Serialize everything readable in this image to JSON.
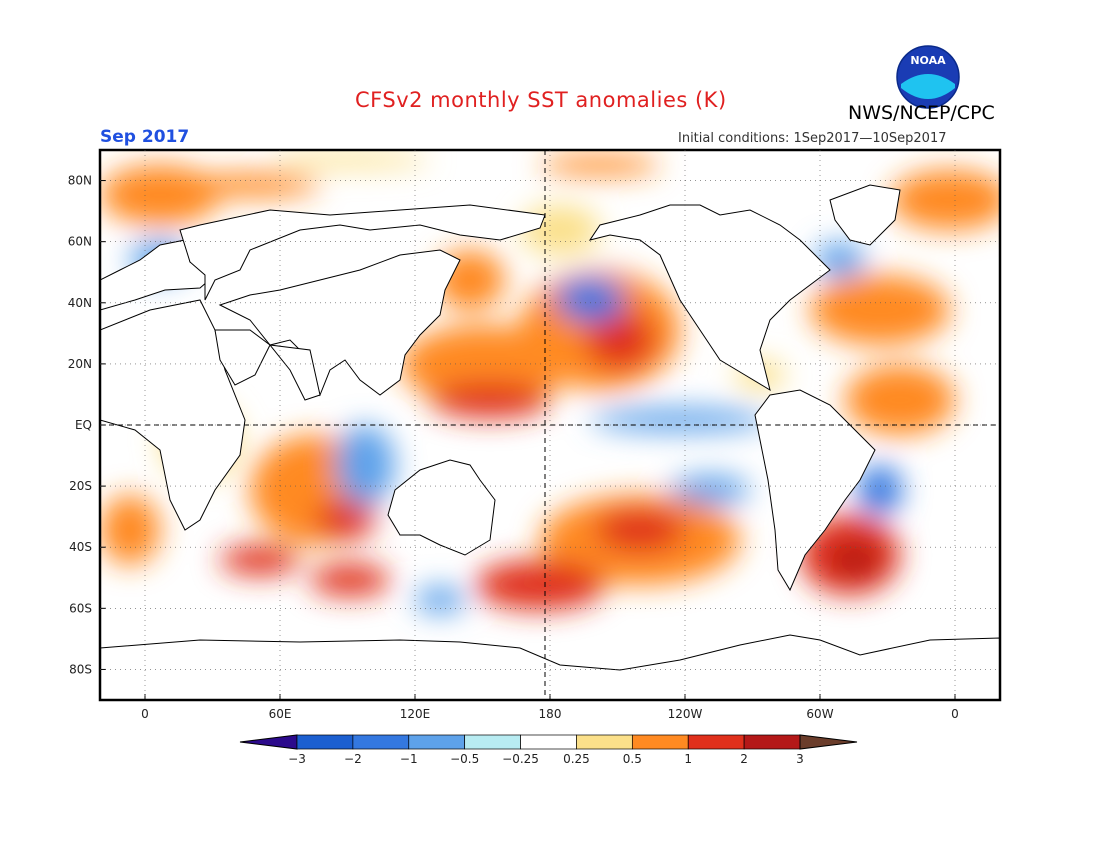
{
  "header": {
    "title": "CFSv2 monthly SST anomalies (K)",
    "organization": "NWS/NCEP/CPC",
    "logo_text": "NOAA",
    "month": "Sep 2017",
    "initial_conditions": "Initial conditions: 1Sep2017—10Sep2017"
  },
  "colors": {
    "title": "#e02020",
    "month": "#2050e0",
    "land": "#ffffff",
    "frame": "#000000"
  },
  "map": {
    "projection": "equirectangular",
    "lon_range": [
      -20,
      380
    ],
    "lat_range": [
      -90,
      90
    ],
    "lon_labels": [
      "0",
      "60E",
      "120E",
      "180",
      "120W",
      "60W",
      "0"
    ],
    "lat_labels": [
      "80N",
      "60N",
      "40N",
      "20N",
      "EQ",
      "20S",
      "40S",
      "60S",
      "80S"
    ],
    "dashed_reference": [
      "Equator",
      "180 meridian"
    ]
  },
  "colorbar": {
    "bounds": [
      "-3",
      "-2",
      "-1",
      "-0.5",
      "-0.25",
      "0.25",
      "0.5",
      "1",
      "2",
      "3"
    ],
    "colors": [
      "#2c0a8c",
      "#1c5fd0",
      "#3478e0",
      "#5ea2ea",
      "#b8ecf2",
      "#ffffff",
      "#fbe08a",
      "#ff8a22",
      "#e0301c",
      "#b41818",
      "#6b3d2b"
    ]
  },
  "anomaly_regions": [
    {
      "name": "NE Pacific warm blob",
      "lon": 205,
      "lat": 28,
      "level": 1
    },
    {
      "name": "Gulf of Alaska cool",
      "lon": 190,
      "lat": 42,
      "level": -2
    },
    {
      "name": "W Pacific warm",
      "lon": 150,
      "lat": 18,
      "level": 1
    },
    {
      "name": "Equatorial Pacific cool",
      "lon": 225,
      "lat": -2,
      "level": -1
    },
    {
      "name": "SE Pacific warm",
      "lon": 205,
      "lat": -38,
      "level": 1
    },
    {
      "name": "S Atlantic warm",
      "lon": 310,
      "lat": -42,
      "level": 2
    },
    {
      "name": "S Indian warm",
      "lon": 85,
      "lat": -35,
      "level": 1
    },
    {
      "name": "E Indian cool",
      "lon": 105,
      "lat": -15,
      "level": -1
    },
    {
      "name": "Arctic warm",
      "lon": 350,
      "lat": 75,
      "level": 1
    }
  ]
}
